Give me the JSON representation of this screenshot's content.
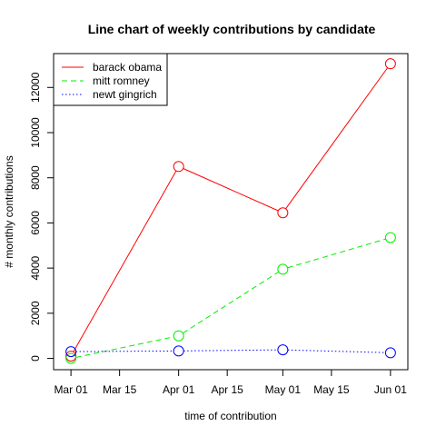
{
  "chart_data": {
    "type": "line",
    "title": "Line chart of weekly contributions by candidate",
    "xlabel": "time of contribution",
    "ylabel": "# monthly contributions",
    "x_ticks": [
      "Mar 01",
      "Mar 15",
      "Apr 01",
      "Apr 15",
      "May 01",
      "May 15",
      "Jun 01"
    ],
    "x_tick_days": [
      0,
      14,
      31,
      45,
      61,
      75,
      92
    ],
    "xlim_days": [
      -5,
      97
    ],
    "y_ticks": [
      0,
      2000,
      4000,
      6000,
      8000,
      10000,
      12000
    ],
    "ylim": [
      -500,
      13500
    ],
    "x": [
      "Mar 01",
      "Apr 01",
      "May 01",
      "Jun 01"
    ],
    "x_days": [
      0,
      31,
      61,
      92
    ],
    "series": [
      {
        "name": "barack obama",
        "values": [
          100,
          8500,
          6450,
          13050
        ],
        "color": "#ff0000",
        "dash": ""
      },
      {
        "name": "mitt romney",
        "values": [
          0,
          1000,
          3950,
          5350
        ],
        "color": "#00ee00",
        "dash": "6,4"
      },
      {
        "name": "newt gingrich",
        "values": [
          300,
          330,
          380,
          250
        ],
        "color": "#0000ff",
        "dash": "1.5,2.5"
      }
    ],
    "legend_position": "top-left",
    "grid": false
  }
}
